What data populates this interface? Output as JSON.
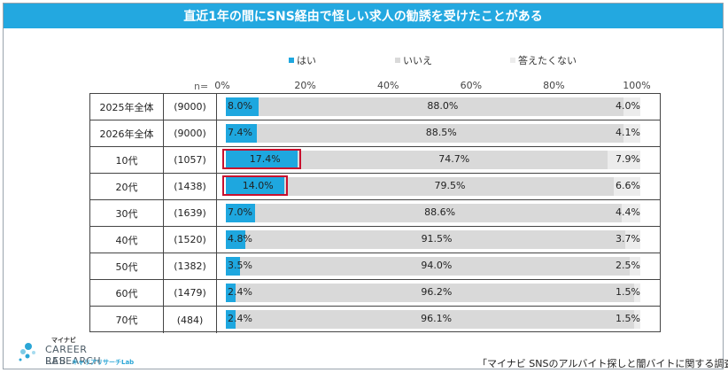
{
  "title": "直近1年の間にSNS経由で怪しい求人の勧誘を受けたことがある",
  "legend": [
    {
      "name": "はい",
      "color": "#1ea7df"
    },
    {
      "name": "いいえ",
      "color": "#d9d9d9"
    },
    {
      "name": "答えたくない",
      "color": "#ececec"
    }
  ],
  "n_label": "n=",
  "axis_ticks": [
    "0%",
    "20%",
    "40%",
    "60%",
    "80%",
    "100%"
  ],
  "source": "「マイナビ SNSのアルバイト探しと闇バイトに関する調査」",
  "logo": {
    "top": "マイナビ",
    "line1": "CAREER RESEARCH",
    "line2": "LAB",
    "sub": "キャリアリサーチLab"
  },
  "chart_data": {
    "type": "bar",
    "stacked": true,
    "orientation": "horizontal",
    "xlim": [
      0,
      100
    ],
    "categories": [
      "2025年全体",
      "2026年全体",
      "10代",
      "20代",
      "30代",
      "40代",
      "50代",
      "60代",
      "70代"
    ],
    "n": [
      "(9000)",
      "(9000)",
      "(1057)",
      "(1438)",
      "(1639)",
      "(1520)",
      "(1382)",
      "(1479)",
      "(484)"
    ],
    "series": [
      {
        "name": "はい",
        "values": [
          8.0,
          7.4,
          17.4,
          14.0,
          7.0,
          4.8,
          3.5,
          2.4,
          2.4
        ],
        "labels": [
          "8.0%",
          "7.4%",
          "17.4%",
          "14.0%",
          "7.0%",
          "4.8%",
          "3.5%",
          "2.4%",
          "2.4%"
        ]
      },
      {
        "name": "いいえ",
        "values": [
          88.0,
          88.5,
          74.7,
          79.5,
          88.6,
          91.5,
          94.0,
          96.2,
          96.1
        ],
        "labels": [
          "88.0%",
          "88.5%",
          "74.7%",
          "79.5%",
          "88.6%",
          "91.5%",
          "94.0%",
          "96.2%",
          "96.1%"
        ]
      },
      {
        "name": "答えたくない",
        "values": [
          4.0,
          4.1,
          7.9,
          6.6,
          4.4,
          3.7,
          2.5,
          1.5,
          1.5
        ],
        "labels": [
          "4.0%",
          "4.1%",
          "7.9%",
          "6.6%",
          "4.4%",
          "3.7%",
          "2.5%",
          "1.5%",
          "1.5%"
        ]
      }
    ],
    "highlighted_categories": [
      "10代",
      "20代"
    ]
  }
}
